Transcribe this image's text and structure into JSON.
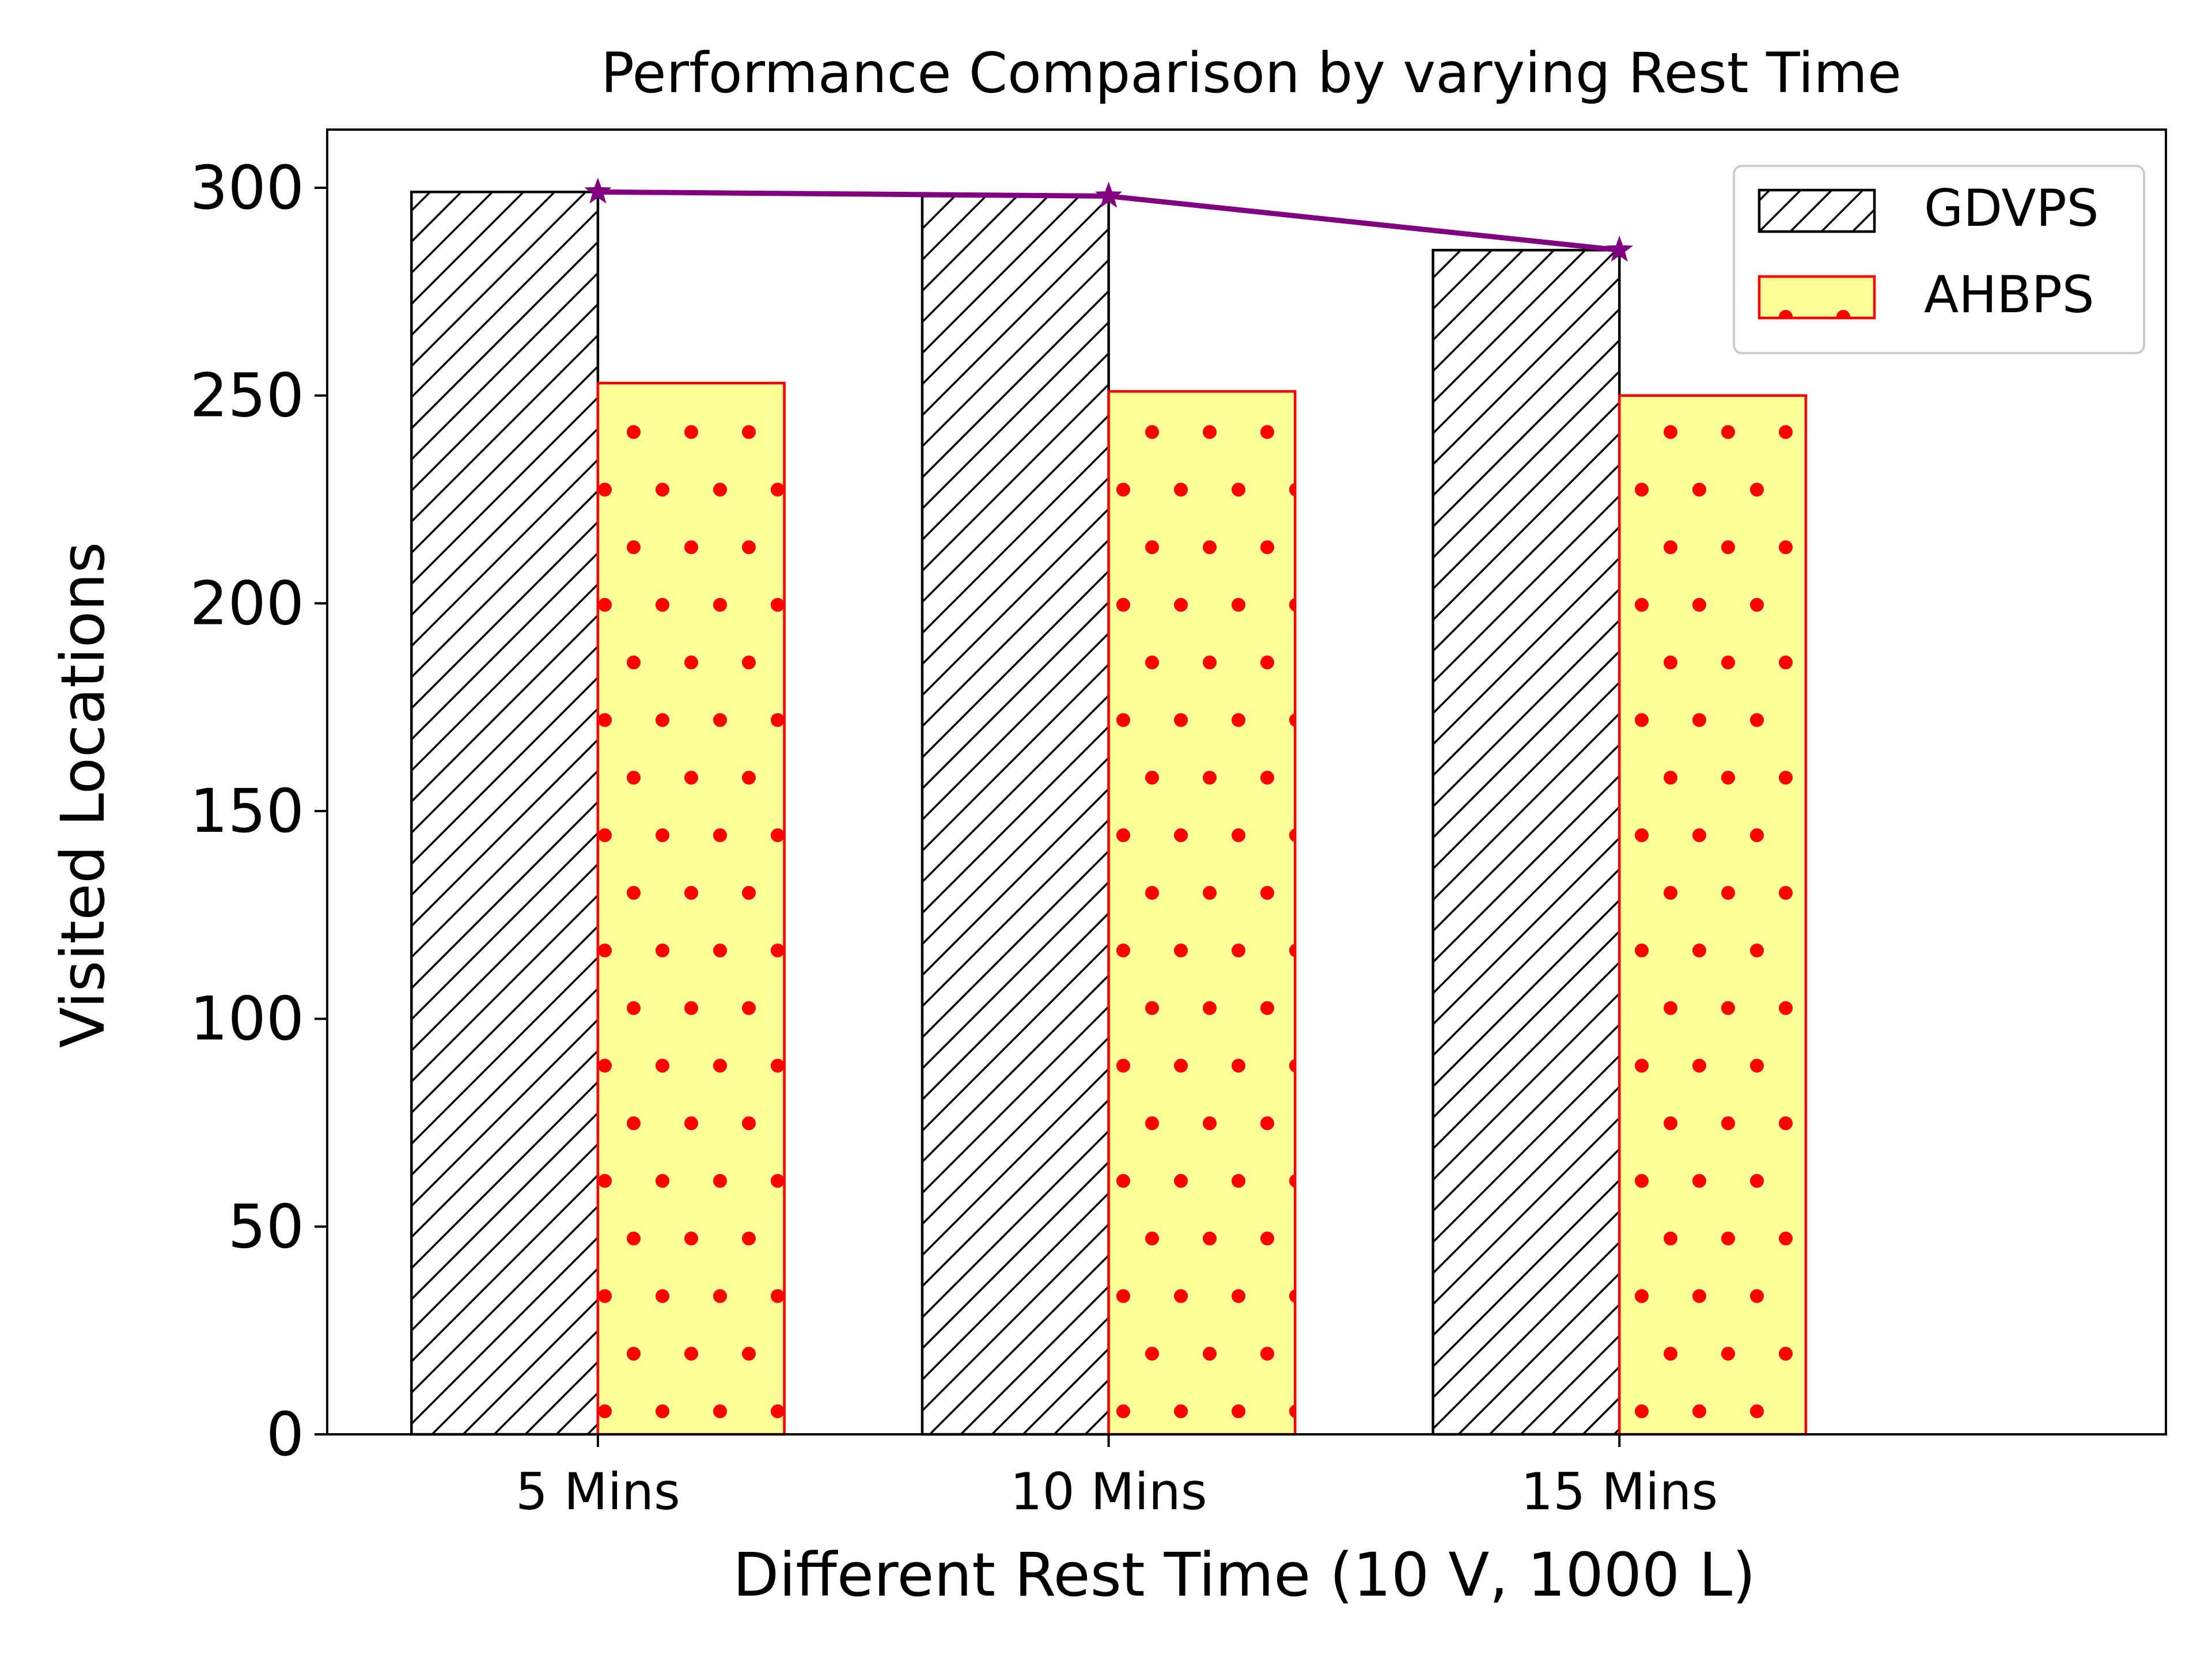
{
  "chart_data": {
    "type": "bar",
    "title": "Performance Comparison by varying Rest Time",
    "xlabel": "Different Rest Time (10 V, 1000 L)",
    "ylabel": "Visited Locations",
    "categories": [
      "5 Mins",
      "10 Mins",
      "15 Mins"
    ],
    "ylim": [
      0,
      314
    ],
    "yticks": [
      0,
      50,
      100,
      150,
      200,
      250,
      300
    ],
    "grid": false,
    "legend_position": "top-right",
    "series": [
      {
        "name": "GDVPS",
        "kind": "bar",
        "values": [
          299,
          298,
          285
        ],
        "fill": "#ffffff",
        "edge": "#000000",
        "hatch": "diagonal"
      },
      {
        "name": "AHBPS",
        "kind": "bar",
        "values": [
          253,
          251,
          250
        ],
        "fill": "#ffff99",
        "edge": "#ff0000",
        "hatch": "dots"
      },
      {
        "name": "",
        "kind": "line",
        "values": [
          299,
          298,
          285
        ],
        "color": "#800080",
        "marker": "star"
      }
    ]
  }
}
